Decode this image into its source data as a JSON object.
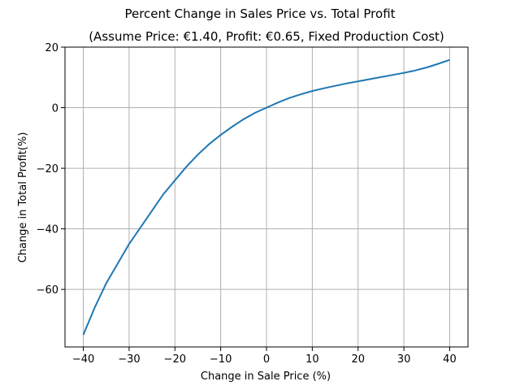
{
  "chart_data": {
    "type": "line",
    "title": "Percent Change in Sales Price vs. Total Profit",
    "subtitle": "(Assume Price: €1.40, Profit: €0.65, Fixed Production Cost)",
    "xlabel": "Change in Sale Price (%)",
    "ylabel": "Change in Total Profit(%)",
    "xlim": [
      -44,
      44
    ],
    "ylim": [
      -79,
      20
    ],
    "xticks": [
      -40,
      -30,
      -20,
      -10,
      0,
      10,
      20,
      30,
      40
    ],
    "yticks": [
      20,
      0,
      -20,
      -40,
      -60
    ],
    "grid": true,
    "line_color": "#1f77b4",
    "series": [
      {
        "x": [
          -40,
          -37.5,
          -35,
          -32.5,
          -30,
          -27.5,
          -25,
          -22.5,
          -20,
          -17.5,
          -15,
          -12.5,
          -10,
          -7.5,
          -5,
          -2.5,
          0,
          2.5,
          5,
          7.5,
          10,
          12.5,
          15,
          17.5,
          20,
          22.5,
          25,
          27.5,
          30,
          32.5,
          35,
          37.5,
          40
        ],
        "y": [
          -75,
          -66,
          -58,
          -51.5,
          -45,
          -39.5,
          -34,
          -28.5,
          -24,
          -19.5,
          -15.5,
          -12,
          -9,
          -6.3,
          -3.8,
          -1.7,
          0,
          1.7,
          3.2,
          4.4,
          5.5,
          6.4,
          7.2,
          8,
          8.7,
          9.4,
          10.1,
          10.8,
          11.5,
          12.3,
          13.3,
          14.5,
          15.8
        ]
      }
    ]
  }
}
